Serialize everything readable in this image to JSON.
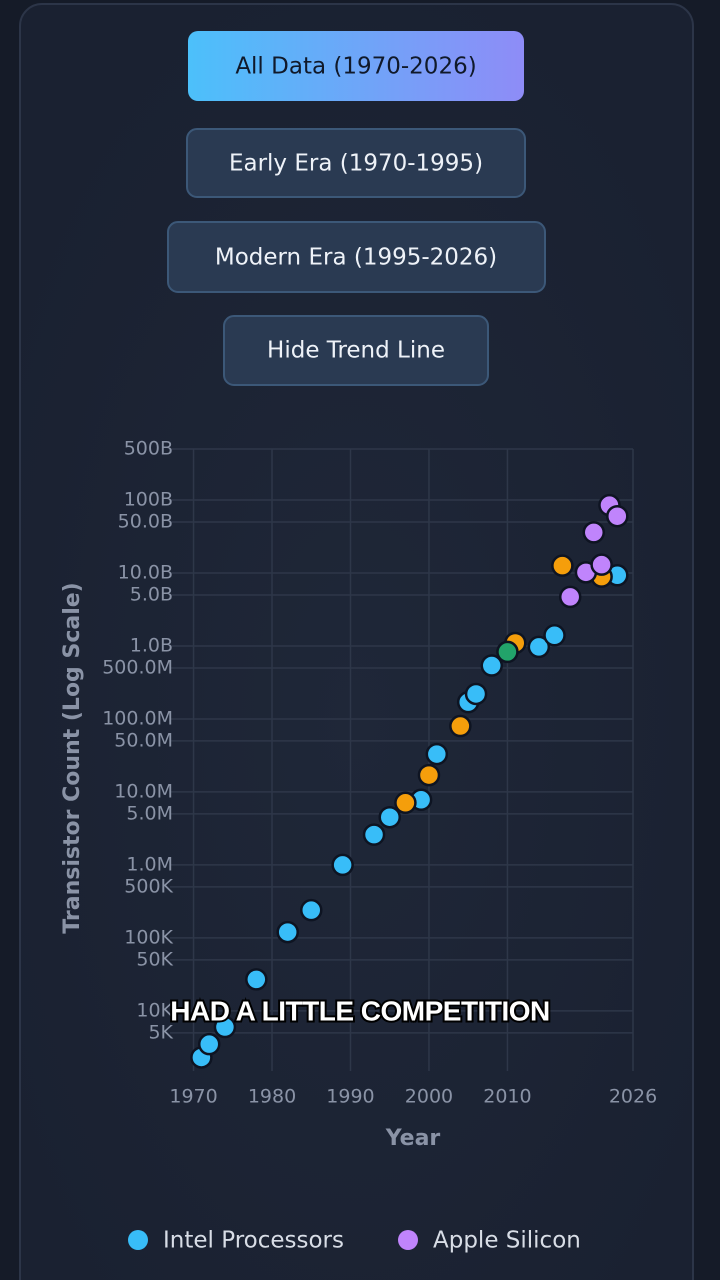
{
  "buttons": [
    "All Data (1970-2026)",
    "Early Era (1970-1995)",
    "Modern Era (1995-2026)",
    "Hide Trend Line"
  ],
  "caption": "HAD A LITTLE COMPETITION",
  "chart_data": {
    "type": "scatter",
    "x_label": "Year",
    "y_label": "Transistor Count (Log Scale)",
    "log_y": true,
    "grid": true,
    "xlim": [
      1967,
      2026
    ],
    "xticks": [
      1970,
      1980,
      1990,
      2000,
      2010,
      2026
    ],
    "ylim": [
      1500,
      500000000000
    ],
    "yticks": [
      {
        "value": 500000000000,
        "label": "500B"
      },
      {
        "value": 100000000000,
        "label": "100B"
      },
      {
        "value": 50000000000,
        "label": "50.0B"
      },
      {
        "value": 10000000000,
        "label": "10.0B"
      },
      {
        "value": 5000000000,
        "label": "5.0B"
      },
      {
        "value": 1000000000,
        "label": "1.0B"
      },
      {
        "value": 500000000,
        "label": "500.0M"
      },
      {
        "value": 100000000,
        "label": "100.0M"
      },
      {
        "value": 50000000,
        "label": "50.0M"
      },
      {
        "value": 10000000,
        "label": "10.0M"
      },
      {
        "value": 5000000,
        "label": "5.0M"
      },
      {
        "value": 1000000,
        "label": "1.0M"
      },
      {
        "value": 500000,
        "label": "500K"
      },
      {
        "value": 100000,
        "label": "100K"
      },
      {
        "value": 50000,
        "label": "50K"
      },
      {
        "value": 10000,
        "label": "10K"
      },
      {
        "value": 5000,
        "label": "5K"
      }
    ],
    "series": [
      {
        "name": "Intel Processors",
        "color": "#38bdf8",
        "x": [
          1971,
          1972,
          1974,
          1978,
          1982,
          1985,
          1989,
          1993,
          1995,
          1999,
          2001,
          2005,
          2006,
          2008,
          2014,
          2016,
          2024
        ],
        "values": [
          2300,
          3500,
          6000,
          27000,
          120000,
          240000,
          1000000,
          2600000,
          4500000,
          7800000,
          33000000,
          170000000,
          220000000,
          540000000,
          970000000,
          1400000000,
          9300000000
        ]
      },
      {
        "color": "#f59e0b",
        "x": [
          1997,
          2000,
          2004,
          2011,
          2017,
          2022
        ],
        "values": [
          7100000,
          17000000,
          80000000,
          1100000000,
          12600000000,
          8900000000
        ]
      },
      {
        "color": "#22a36a",
        "x": [
          2010
        ],
        "values": [
          830000000
        ]
      },
      {
        "name": "Apple Silicon",
        "color": "#c084fc",
        "x": [
          2018,
          2020,
          2021,
          2022,
          2023,
          2024
        ],
        "values": [
          4700000000,
          10200000000,
          36000000000,
          13000000000,
          85000000000,
          60000000000
        ]
      }
    ]
  }
}
